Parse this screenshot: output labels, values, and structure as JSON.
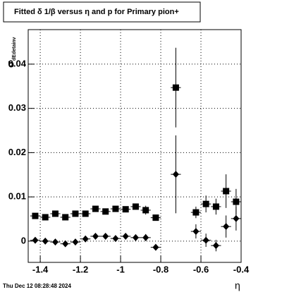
{
  "chart_data": {
    "type": "scatter",
    "title": "Fitted δ 1/β versus η and p for Primary pion+",
    "ylabel": "σ",
    "ylabel_sub": "dEdetainv",
    "xlabel": "η",
    "footer": "Thu Dec 12 08:28:48 2024",
    "x": [
      -1.425,
      -1.375,
      -1.325,
      -1.275,
      -1.225,
      -1.175,
      -1.125,
      -1.075,
      -1.025,
      -0.975,
      -0.925,
      -0.875,
      -0.825,
      -0.725,
      -0.625,
      -0.575,
      -0.525,
      -0.475,
      -0.425
    ],
    "xerr": 0.025,
    "series": [
      {
        "marker": "square",
        "color": "#000000",
        "values": [
          0.0057,
          0.0054,
          0.0062,
          0.0054,
          0.0062,
          0.0062,
          0.0073,
          0.0067,
          0.0073,
          0.0072,
          0.0078,
          0.007,
          0.0053,
          0.0347,
          0.0065,
          0.0084,
          0.0078,
          0.0113,
          0.0089
        ],
        "errors": [
          0.0005,
          0.0005,
          0.0005,
          0.0005,
          0.0005,
          0.0005,
          0.0005,
          0.0005,
          0.0005,
          0.0005,
          0.0005,
          0.001,
          0.0005,
          0.009,
          0.0013,
          0.0019,
          0.0018,
          0.0038,
          0.0029
        ]
      },
      {
        "marker": "diamond",
        "color": "#000000",
        "values": [
          0.0002,
          0.0,
          -0.0002,
          -0.0006,
          -0.0002,
          0.0005,
          0.0011,
          0.0011,
          0.0006,
          0.0011,
          0.0008,
          0.0008,
          -0.0014,
          0.0151,
          0.0022,
          0.0002,
          -0.001,
          0.0033,
          0.0051
        ],
        "errors": [
          0.0005,
          0.0005,
          0.0005,
          0.0005,
          0.0005,
          0.0005,
          0.0005,
          0.0005,
          0.0005,
          0.0005,
          0.0005,
          0.0008,
          0.0005,
          0.0088,
          0.0016,
          0.0015,
          0.0013,
          0.0025,
          0.0027
        ]
      }
    ],
    "xlim": [
      -1.46,
      -0.4
    ],
    "ylim": [
      -0.0048,
      0.0478
    ],
    "xticks": [
      -1.4,
      -1.2,
      -1,
      -0.8,
      -0.6,
      -0.4
    ],
    "yticks": [
      0,
      0.01,
      0.02,
      0.03,
      0.04
    ],
    "grid": true
  }
}
